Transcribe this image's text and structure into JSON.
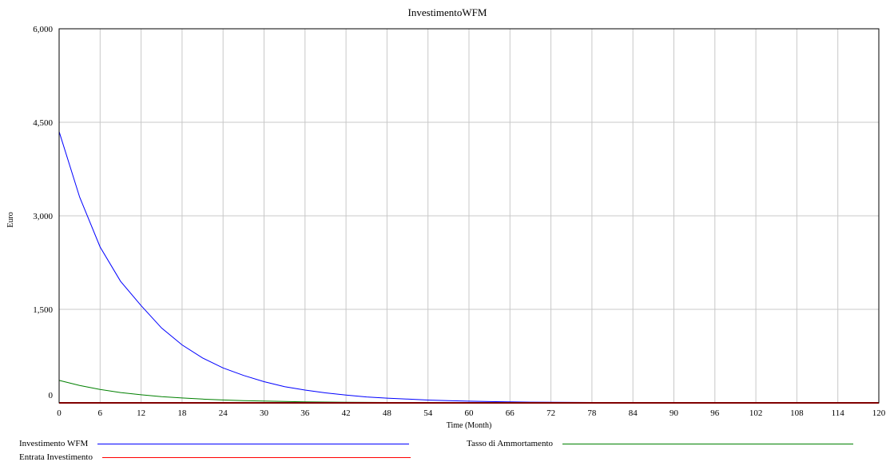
{
  "chart_data": {
    "type": "line",
    "title": "InvestimentoWFM",
    "xlabel": "Time (Month)",
    "ylabel": "Euro",
    "xlim": [
      0,
      120
    ],
    "ylim": [
      0,
      6000
    ],
    "x_ticks": [
      "0",
      "6",
      "12",
      "18",
      "24",
      "30",
      "36",
      "42",
      "48",
      "54",
      "60",
      "66",
      "72",
      "78",
      "84",
      "90",
      "96",
      "102",
      "108",
      "114",
      "120"
    ],
    "y_ticks": [
      "0",
      "1,500",
      "3,000",
      "4,500",
      "6,000"
    ],
    "y_tick_values": [
      0,
      1500,
      3000,
      4500,
      6000
    ],
    "grid": true,
    "x": [
      0,
      3,
      6,
      9,
      12,
      15,
      18,
      21,
      24,
      27,
      30,
      33,
      36,
      39,
      42,
      45,
      48,
      51,
      54,
      57,
      60,
      63,
      66,
      69,
      72,
      78,
      84,
      90,
      96,
      102,
      108,
      114,
      120
    ],
    "series": [
      {
        "name": "Investimento WFM",
        "color": "#0000ff",
        "values": [
          4350,
          3300,
          2500,
          1950,
          1560,
          1200,
          930,
          720,
          560,
          440,
          340,
          260,
          205,
          160,
          125,
          95,
          75,
          60,
          45,
          35,
          27,
          21,
          16,
          12,
          9,
          6,
          4,
          3,
          2,
          1,
          1,
          0,
          0
        ]
      },
      {
        "name": "Tasso di Ammortamento",
        "color": "#008000",
        "values": [
          360,
          280,
          215,
          165,
          130,
          100,
          78,
          60,
          46,
          36,
          28,
          22,
          17,
          13,
          10,
          8,
          6,
          5,
          4,
          3,
          2,
          2,
          1,
          1,
          1,
          0,
          0,
          0,
          0,
          0,
          0,
          0,
          0
        ]
      },
      {
        "name": "Entrata Investimento",
        "color": "#ff0000",
        "values": [
          0,
          0,
          0,
          0,
          0,
          0,
          0,
          0,
          0,
          0,
          0,
          0,
          0,
          0,
          0,
          0,
          0,
          0,
          0,
          0,
          0,
          0,
          0,
          0,
          0,
          0,
          0,
          0,
          0,
          0,
          0,
          0,
          0
        ]
      }
    ]
  }
}
